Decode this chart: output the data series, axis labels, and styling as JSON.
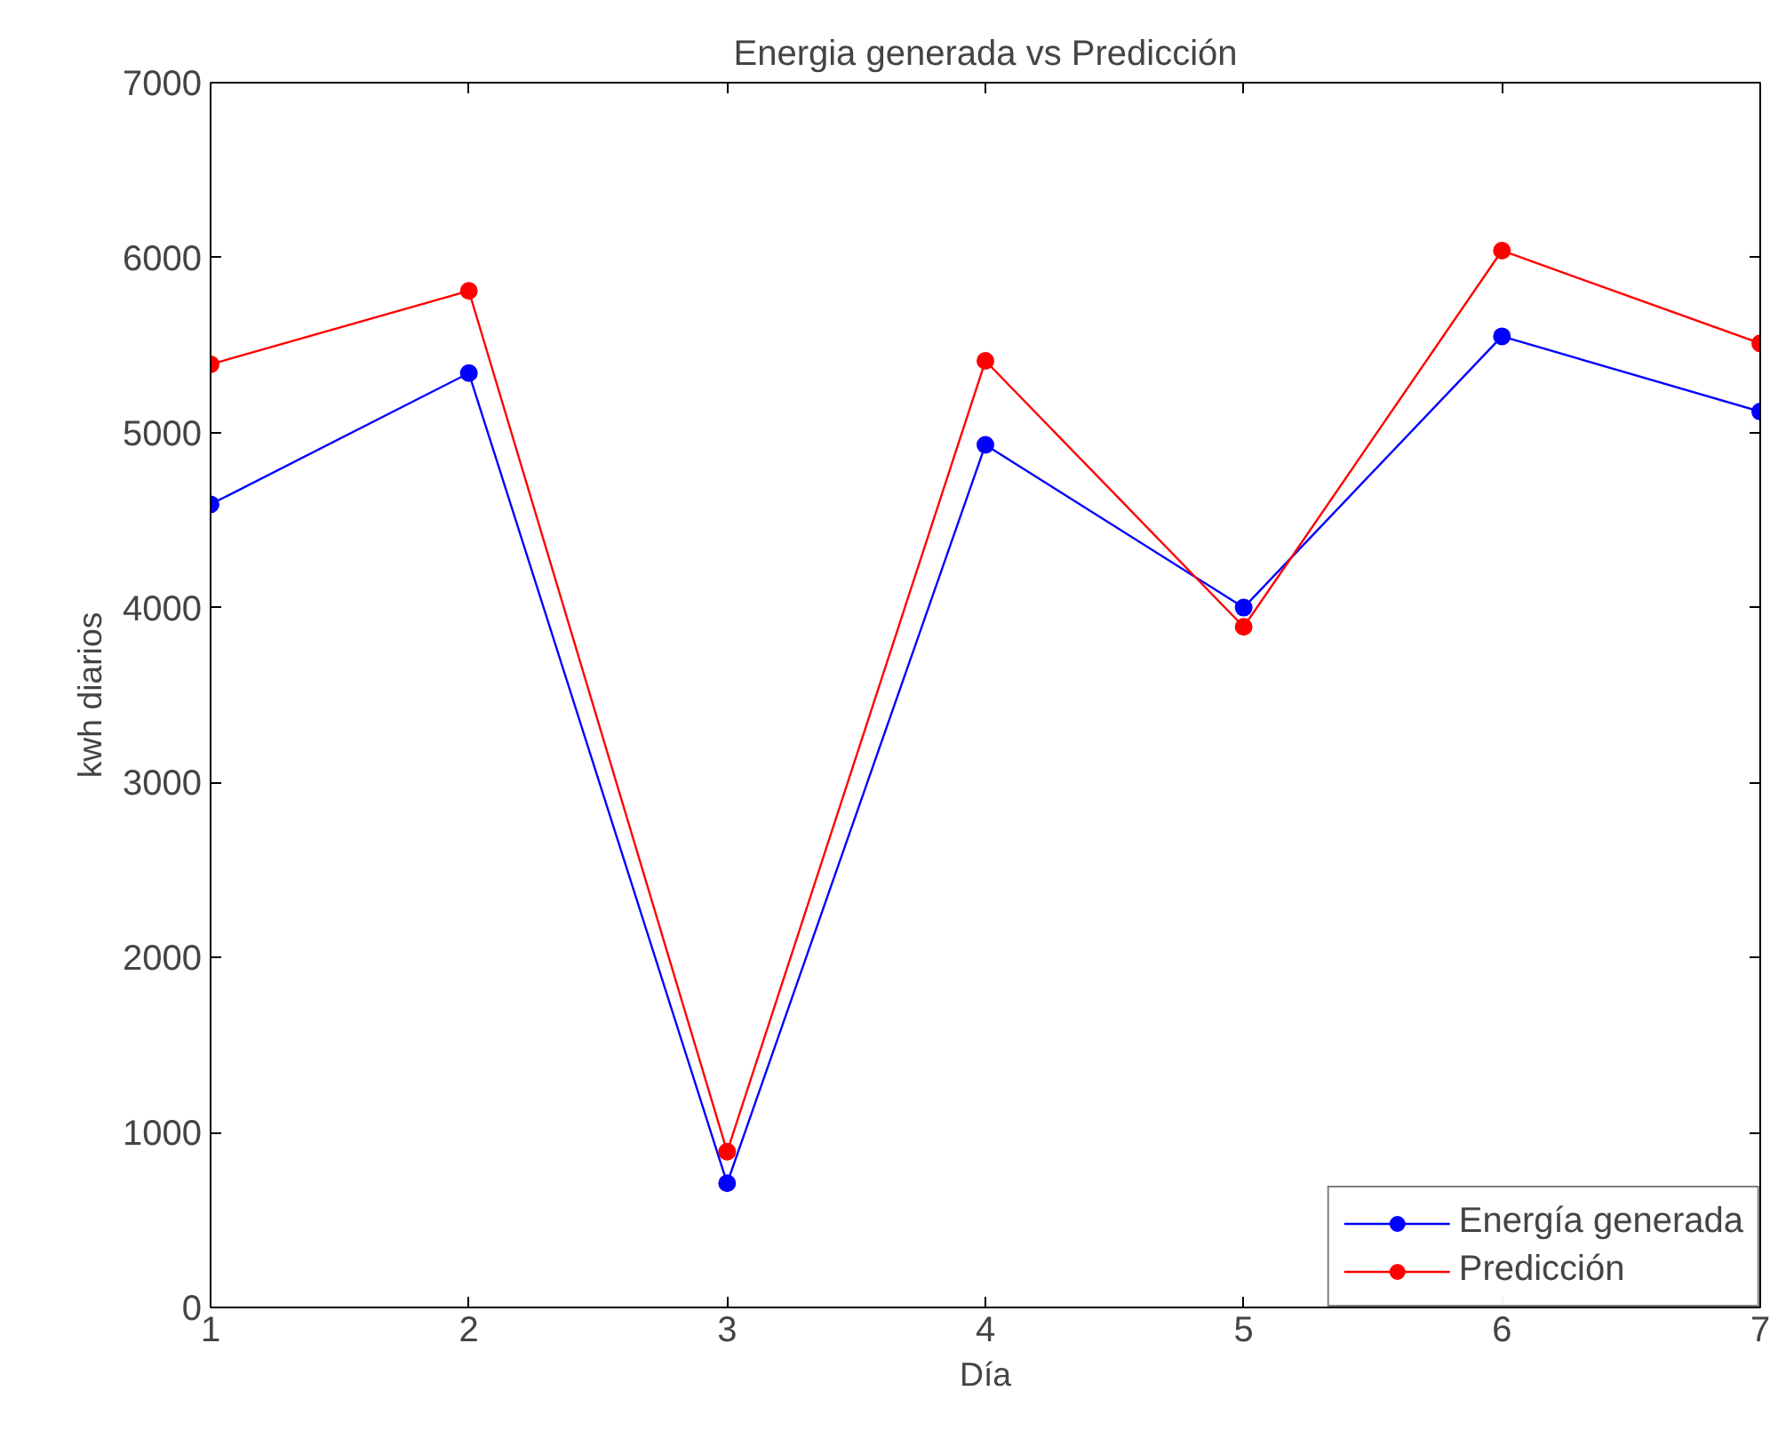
{
  "chart_data": {
    "type": "line",
    "title": "Energia generada vs Predicción",
    "xlabel": "Día",
    "ylabel": "kwh diarios",
    "x": [
      1,
      2,
      3,
      4,
      5,
      6,
      7
    ],
    "series": [
      {
        "name": "Energía generada",
        "color": "#0000ff",
        "values": [
          4590,
          5340,
          710,
          4930,
          4000,
          5550,
          5120
        ]
      },
      {
        "name": "Predicción",
        "color": "#ff0000",
        "values": [
          5390,
          5810,
          890,
          5410,
          3890,
          6040,
          5510
        ]
      }
    ],
    "xlim": [
      1,
      7
    ],
    "xticks": [
      1,
      2,
      3,
      4,
      5,
      6,
      7
    ],
    "ylim": [
      0,
      7000
    ],
    "yticks": [
      0,
      1000,
      2000,
      3000,
      4000,
      5000,
      6000,
      7000
    ],
    "grid": false,
    "legend": "bottom right",
    "marker": "circle",
    "line_style": "solid"
  }
}
